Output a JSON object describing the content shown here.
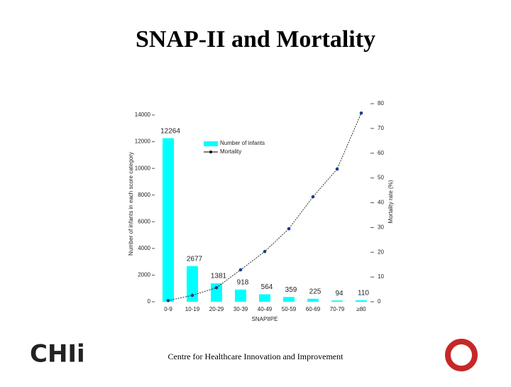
{
  "chart_data": {
    "type": "bar_line",
    "title": "SNAP-II and Mortality",
    "x_label": "SNAPIIPE",
    "y_label": "Number of infants in each score category",
    "y2_label": "Mortality rate (%)",
    "categories": [
      "0-9",
      "10-19",
      "20-29",
      "30-39",
      "40-49",
      "50-59",
      "60-69",
      "70-79",
      "≥80"
    ],
    "series": [
      {
        "name": "Number of infants",
        "color": "#00ffff",
        "type": "bar",
        "values": [
          12264,
          2677,
          1381,
          918,
          564,
          359,
          225,
          94,
          110
        ]
      },
      {
        "name": "Mortality",
        "color": "#000000",
        "type": "line",
        "axis": "y2",
        "values": [
          0.5,
          2.6,
          5.7,
          12.9,
          20.3,
          29.5,
          42.4,
          53.6,
          76.2
        ]
      }
    ],
    "ylim": [
      0,
      14000
    ],
    "yticks": [
      0,
      2000,
      4000,
      6000,
      8000,
      10000,
      12000,
      14000
    ],
    "y2lim": [
      0,
      80
    ],
    "y2ticks": [
      0,
      10,
      20,
      30,
      40,
      50,
      60,
      70,
      80
    ]
  },
  "footer": "Centre for Healthcare Innovation and Improvement",
  "logo": {
    "text": "CHIi"
  }
}
